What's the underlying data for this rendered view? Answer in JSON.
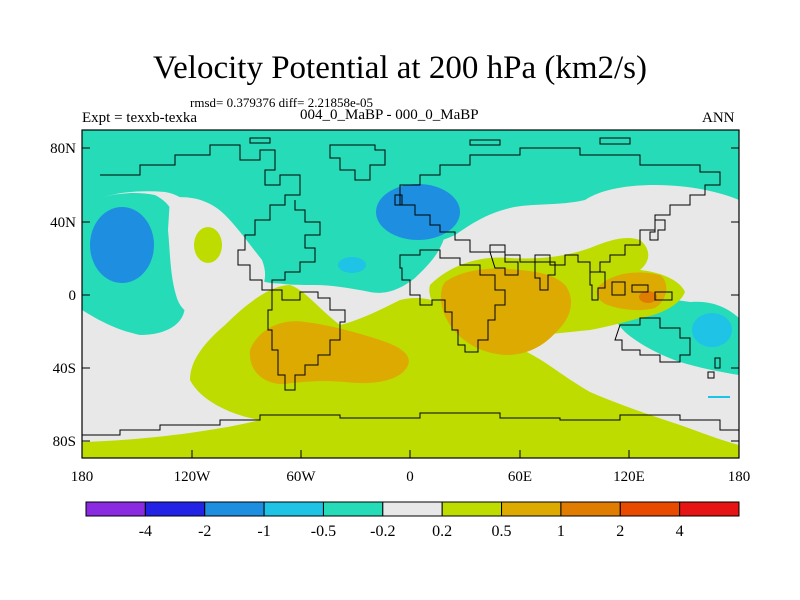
{
  "title": "Velocity Potential at 200 hPa (km2/s)",
  "stats": "rmsd= 0.379376 diff= 2.21858e-05",
  "expt": "Expt = texxb-texka",
  "subtitle": "004_0_MaBP - 000_0_MaBP",
  "season": "ANN",
  "lat_ticks": [
    "80N",
    "40N",
    "0",
    "40S",
    "80S"
  ],
  "lon_ticks": [
    "180",
    "120W",
    "60W",
    "0",
    "60E",
    "120E",
    "180"
  ],
  "colorbar": {
    "colors": [
      "#8a2be2",
      "#2323e6",
      "#1e8fe0",
      "#1ec3e6",
      "#26dcb8",
      "#e8e8e8",
      "#bedc00",
      "#dcaa00",
      "#e07d00",
      "#e84a00",
      "#e61414"
    ],
    "labels": [
      "-4",
      "-2",
      "-1",
      "-0.5",
      "-0.2",
      "0.2",
      "0.5",
      "1",
      "2",
      "4"
    ]
  },
  "field_colors": {
    "teal": "#26dcb8",
    "cyan": "#1ec3e6",
    "blue": "#1e8fe0",
    "gray": "#e8e8e8",
    "yellowgreen": "#bedc00",
    "orange": "#dcaa00",
    "darkorange": "#e07d00"
  }
}
